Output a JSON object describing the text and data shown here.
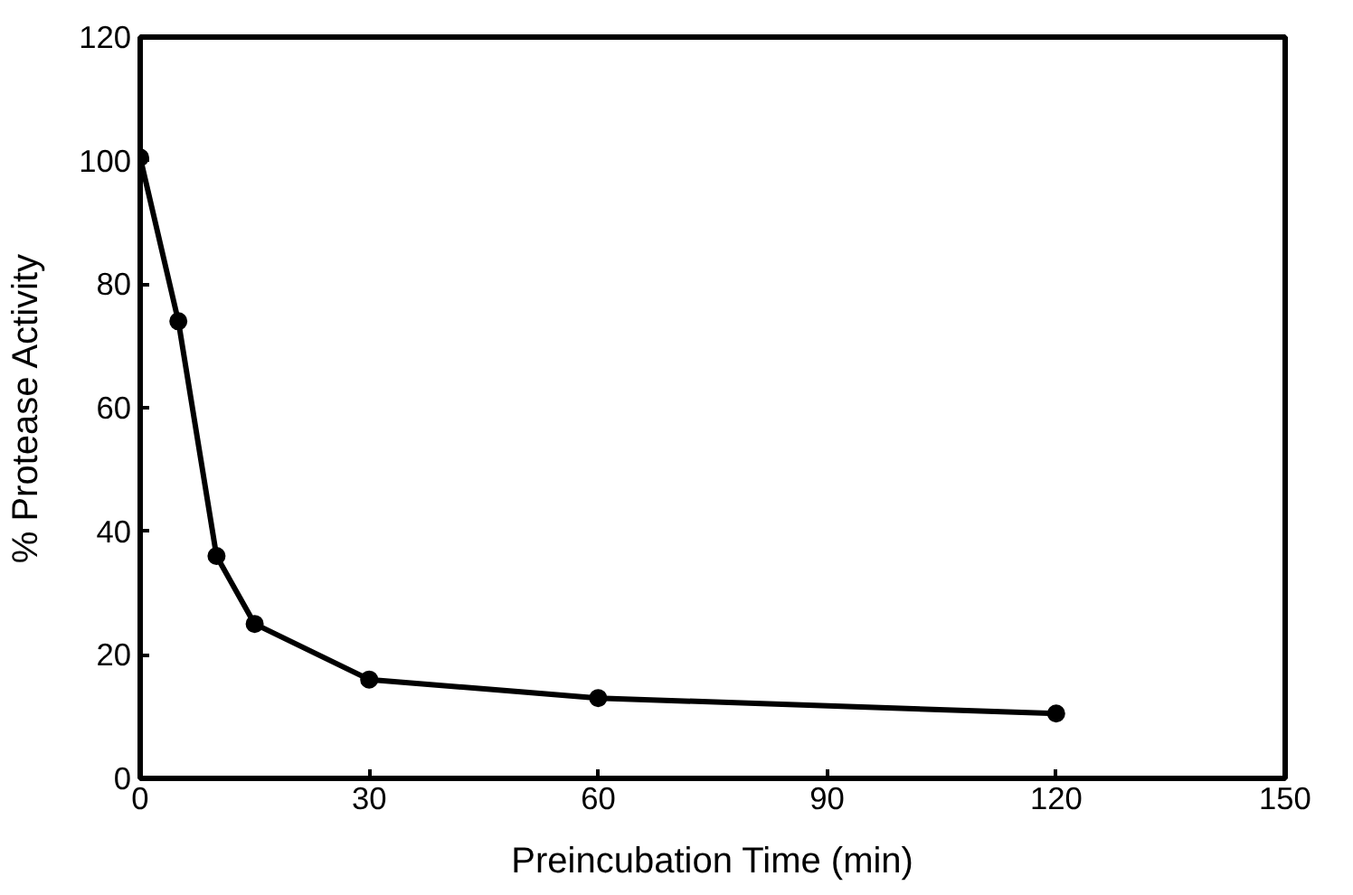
{
  "chart_data": {
    "type": "line",
    "xlabel": "Preincubation Time (min)",
    "ylabel": "% Protease Activity",
    "x": [
      0,
      5,
      10,
      15,
      30,
      60,
      120
    ],
    "series": [
      {
        "color": "#000000",
        "values": [
          100.5,
          74,
          36,
          25,
          16,
          13,
          10.5
        ]
      }
    ],
    "xlim": [
      0,
      150
    ],
    "xticks": [
      0,
      30,
      60,
      90,
      120,
      150
    ],
    "ylim": [
      0,
      120
    ],
    "yticks": [
      0,
      20,
      40,
      60,
      80,
      100,
      120
    ],
    "grid": false,
    "marker": "circle",
    "line_style": "solid"
  }
}
